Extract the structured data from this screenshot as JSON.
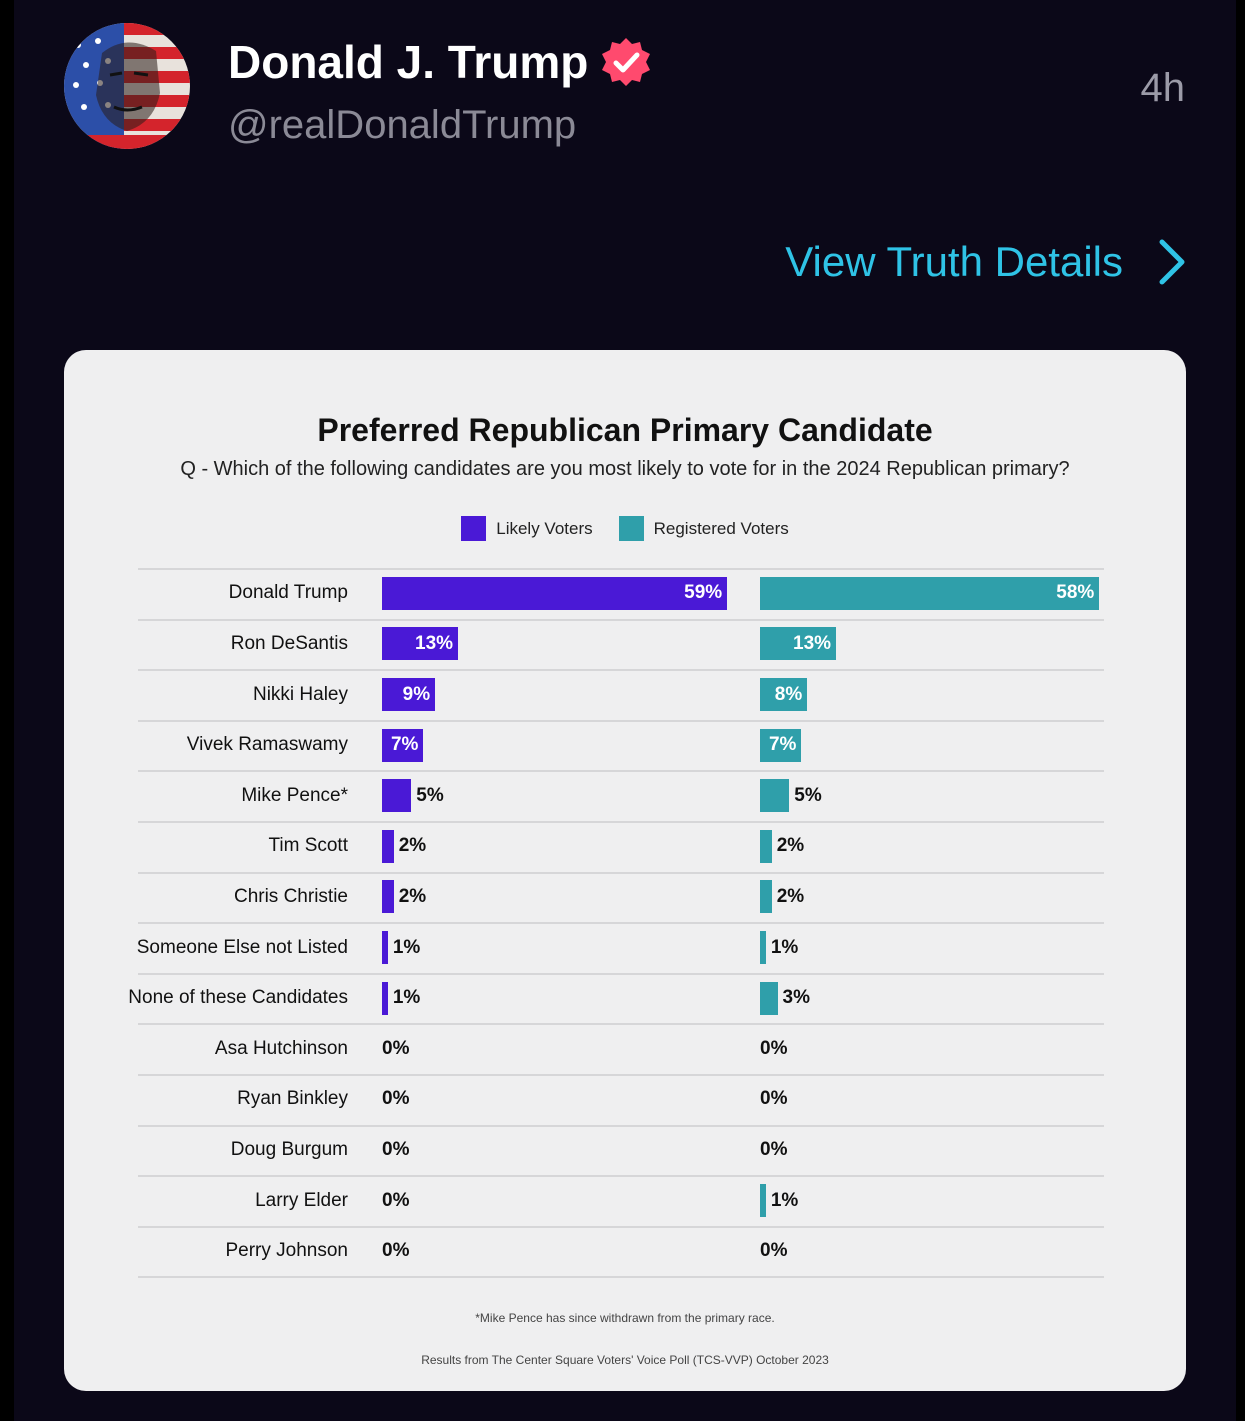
{
  "post": {
    "name": "Donald J. Trump",
    "handle": "@realDonaldTrump",
    "time": "4h",
    "view_details_label": "View Truth Details",
    "accent_color": "#2fc3e6",
    "verified_color": "#ff4a6e"
  },
  "icons": {
    "verified": "verified-badge-icon",
    "chevron": "chevron-right-icon"
  },
  "chart_data": {
    "type": "bar",
    "title": "Preferred Republican Primary Candidate",
    "subtitle": "Q - Which of the following candidates are you most likely to vote for in the 2024 Republican primary?",
    "categories": [
      "Donald Trump",
      "Ron DeSantis",
      "Nikki Haley",
      "Vivek Ramaswamy",
      "Mike Pence*",
      "Tim Scott",
      "Chris Christie",
      "Someone Else not Listed",
      "None of these Candidates",
      "Asa Hutchinson",
      "Ryan Binkley",
      "Doug Burgum",
      "Larry Elder",
      "Perry Johnson"
    ],
    "series": [
      {
        "name": "Likely Voters",
        "color": "#4a19d6",
        "values": [
          59,
          13,
          9,
          7,
          5,
          2,
          2,
          1,
          1,
          0,
          0,
          0,
          0,
          0
        ]
      },
      {
        "name": "Registered Voters",
        "color": "#2f9faa",
        "values": [
          58,
          13,
          8,
          7,
          5,
          2,
          2,
          1,
          3,
          0,
          0,
          0,
          1,
          0
        ]
      }
    ],
    "unit": "%",
    "legend": "top-center",
    "orientation": "horizontal",
    "footnote": "*Mike Pence has since withdrawn from the primary race.",
    "source": "Results from The Center Square Voters' Voice Poll (TCS-VVP) October 2023"
  }
}
